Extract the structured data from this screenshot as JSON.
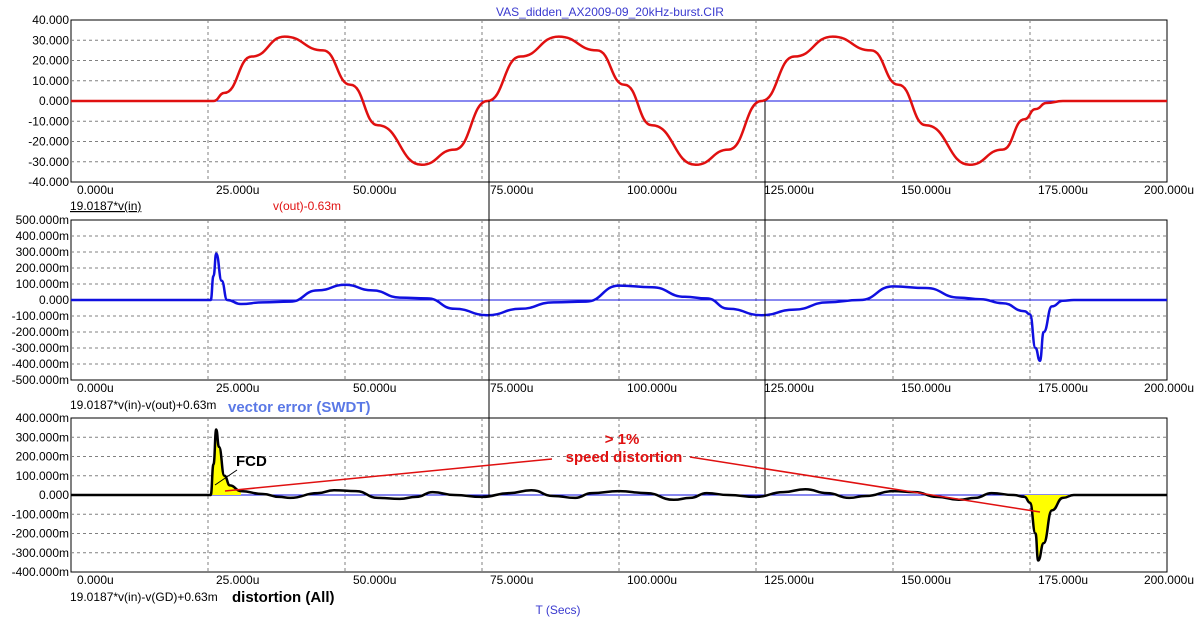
{
  "window": {
    "title": "VAS_didden_AX2009-09_20kHz-burst.CIR",
    "x_axis_label": "T (Secs)"
  },
  "annotations": {
    "vector_error": "vector error (SWDT)",
    "distortion": "distortion (All)",
    "fcd": "FCD",
    "speed_pct": "> 1%",
    "speed_dist": "speed distortion"
  },
  "colors": {
    "frame": "#000000",
    "grid": "#808080",
    "title_text": "#3a3acf",
    "red_trace": "#e01010",
    "blue_trace": "#1010e0",
    "black_trace": "#000000",
    "fill_highlight": "#ffff00",
    "annotation_blue": "#5a78e6",
    "annotation_red": "#e01010"
  },
  "chart_data": [
    {
      "type": "line",
      "panel": "top",
      "xlim": [
        0,
        200
      ],
      "x_unit": "u",
      "ylim": [
        -40,
        40
      ],
      "x_ticks": [
        "0.000u",
        "25.000u",
        "50.000u",
        "75.000u",
        "100.000u",
        "125.000u",
        "150.000u",
        "175.000u",
        "200.000u"
      ],
      "y_ticks": [
        "40.000",
        "30.000",
        "20.000",
        "10.000",
        "0.000",
        "-10.000",
        "-20.000",
        "-30.000",
        "-40.000"
      ],
      "series": [
        {
          "name": "19.0187*v(in)",
          "color": "#1010e0",
          "x": [
            0,
            200
          ],
          "y": [
            0,
            0
          ]
        },
        {
          "name": "v(out)-0.63m",
          "color": "#e01010",
          "x": [
            0,
            26,
            28,
            33,
            39,
            46,
            51,
            56,
            64,
            70,
            76,
            82,
            89,
            96,
            101,
            106,
            114,
            120,
            126,
            132,
            139,
            146,
            151,
            156,
            164,
            170,
            174,
            176,
            178,
            181,
            183,
            200
          ],
          "y": [
            0,
            0,
            4,
            22,
            31.8,
            25,
            8,
            -12,
            -31.5,
            -24,
            0,
            22,
            31.8,
            25,
            8,
            -12,
            -31.5,
            -24,
            0,
            22,
            31.8,
            25,
            8,
            -12,
            -31.5,
            -24,
            -9,
            -4,
            -1,
            0,
            0,
            0
          ]
        }
      ]
    },
    {
      "type": "line",
      "panel": "middle",
      "xlim": [
        0,
        200
      ],
      "x_unit": "u",
      "ylim": [
        -500,
        500
      ],
      "y_unit": "m",
      "x_ticks": [
        "0.000u",
        "25.000u",
        "50.000u",
        "75.000u",
        "100.000u",
        "125.000u",
        "150.000u",
        "175.000u",
        "200.000u"
      ],
      "y_ticks": [
        "500.000m",
        "400.000m",
        "300.000m",
        "200.000m",
        "100.000m",
        "0.000",
        "-100.000m",
        "-200.000m",
        "-300.000m",
        "-400.000m",
        "-500.000m"
      ],
      "series": [
        {
          "name": "19.0187*v(in)-v(out)+0.63m",
          "color": "#1010e0",
          "x": [
            0,
            25.5,
            26,
            26.5,
            27.5,
            28.5,
            31,
            35,
            40,
            45,
            50,
            55,
            60,
            65,
            70,
            76,
            82,
            88,
            94,
            100,
            106,
            112,
            116,
            120,
            126,
            132,
            138,
            144,
            150,
            156,
            162,
            166,
            170,
            174,
            175,
            176,
            176.8,
            177.5,
            179,
            181,
            183,
            200
          ],
          "y": [
            0,
            0,
            150,
            290,
            120,
            0,
            -25,
            -15,
            -10,
            60,
            95,
            60,
            15,
            10,
            -55,
            -95,
            -55,
            -15,
            -10,
            90,
            80,
            20,
            10,
            -55,
            -95,
            -60,
            -15,
            0,
            85,
            75,
            15,
            5,
            -20,
            -70,
            -90,
            -300,
            -380,
            -200,
            -40,
            -5,
            0,
            0
          ]
        }
      ]
    },
    {
      "type": "area",
      "panel": "bottom",
      "xlim": [
        0,
        200
      ],
      "x_unit": "u",
      "ylim": [
        -400,
        400
      ],
      "y_unit": "m",
      "x_ticks": [
        "0.000u",
        "25.000u",
        "50.000u",
        "75.000u",
        "100.000u",
        "125.000u",
        "150.000u",
        "175.000u",
        "200.000u"
      ],
      "y_ticks": [
        "400.000m",
        "300.000m",
        "200.000m",
        "100.000m",
        "0.000",
        "-100.000m",
        "-200.000m",
        "-300.000m",
        "-400.000m"
      ],
      "series": [
        {
          "name": "19.0187*v(in)-v(GD)+0.63m",
          "color": "#000000",
          "fill": "#ffff00",
          "x": [
            0,
            25.5,
            26,
            26.5,
            27,
            28,
            29,
            31,
            35,
            38,
            40,
            45,
            48,
            52,
            56,
            60,
            63,
            66,
            70,
            75,
            80,
            84,
            88,
            92,
            95,
            100,
            105,
            110,
            113,
            116,
            120,
            125,
            130,
            134,
            138,
            142,
            145,
            150,
            154,
            158,
            162,
            165,
            168,
            172,
            174,
            175,
            176,
            176.5,
            177.5,
            179,
            181,
            183,
            200
          ],
          "y": [
            0,
            0,
            160,
            340,
            250,
            100,
            50,
            20,
            5,
            -10,
            -15,
            10,
            25,
            20,
            -15,
            -20,
            -10,
            15,
            0,
            -10,
            10,
            25,
            -5,
            -15,
            10,
            20,
            10,
            -25,
            -15,
            10,
            0,
            -10,
            15,
            30,
            10,
            -15,
            -5,
            20,
            15,
            -10,
            -25,
            -15,
            10,
            0,
            -10,
            -40,
            -200,
            -340,
            -250,
            -80,
            -15,
            0,
            0
          ]
        }
      ]
    }
  ]
}
